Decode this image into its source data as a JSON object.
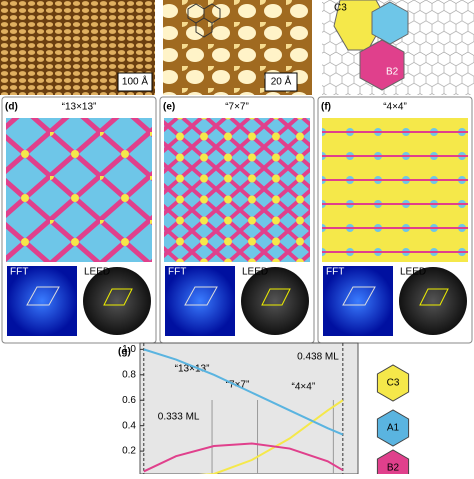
{
  "top": {
    "a_scale": "100 Å",
    "b_scale": "20 Å",
    "c_labels": [
      "C3",
      "B2"
    ]
  },
  "panels": [
    {
      "label": "(d)",
      "title": "“13×13”",
      "fft": "FFT",
      "leed": "LEED"
    },
    {
      "label": "(e)",
      "title": "“7×7”",
      "fft": "FFT",
      "leed": "LEED"
    },
    {
      "label": "(f)",
      "title": "“4×4”",
      "fft": "FFT",
      "leed": "LEED"
    }
  ],
  "plot": {
    "label": "(g)",
    "xlim": [
      0.331,
      0.446
    ],
    "ylim": [
      0.02,
      1.05
    ],
    "yticks": [
      {
        "value": 1,
        "label": "1.0"
      },
      0.8,
      0.6,
      0.4,
      0.2
    ],
    "bounds": [
      {
        "text": "0.438 ML",
        "x": 0.438
      },
      {
        "text": "0.333 ML",
        "x": 0.333
      }
    ],
    "phases": [
      {
        "text": "“13×13”",
        "x": 0.369
      },
      {
        "text": "“7×7”",
        "x": 0.393
      },
      {
        "text": "“4×4”",
        "x": 0.433
      }
    ],
    "x": [
      0.333,
      0.35,
      0.37,
      0.39,
      0.41,
      0.43,
      0.438
    ],
    "series": [
      {
        "name": "C3",
        "color": "#f5e84a",
        "values": [
          0,
          0,
          0.02,
          0.13,
          0.3,
          0.52,
          0.6
        ]
      },
      {
        "name": "A1",
        "color": "#5ab4e0",
        "values": [
          1.0,
          0.92,
          0.8,
          0.66,
          0.52,
          0.38,
          0.33
        ]
      },
      {
        "name": "B2",
        "color": "#e0408c",
        "values": [
          0.04,
          0.16,
          0.24,
          0.26,
          0.22,
          0.12,
          0.05
        ]
      }
    ]
  }
}
